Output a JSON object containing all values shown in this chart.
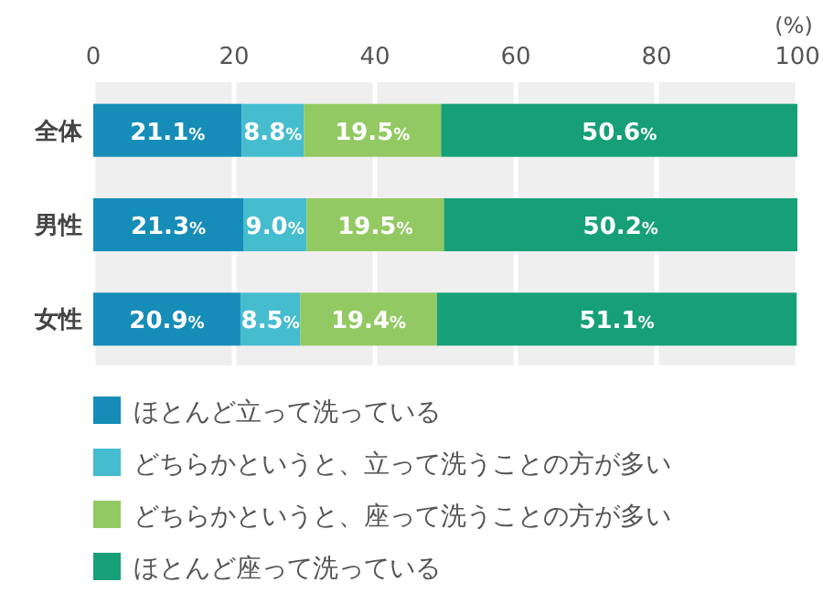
{
  "chart_data": {
    "type": "bar",
    "orientation": "horizontal",
    "stacked": true,
    "xlabel": "(%)",
    "categories": [
      "全体",
      "男性",
      "女性"
    ],
    "series": [
      {
        "name": "ほとんど立って洗っている",
        "color": "#168db8",
        "values": [
          21.1,
          21.3,
          20.9
        ],
        "value_labels": [
          "21.1%",
          "21.3%",
          "20.9%"
        ]
      },
      {
        "name": "どちらかというと、立って洗うことの方が多い",
        "color": "#45bdcf",
        "values": [
          8.8,
          9.0,
          8.5
        ],
        "value_labels": [
          "8.8%",
          "9.0%",
          "8.5%"
        ]
      },
      {
        "name": "どちらかというと、座って洗うことの方が多い",
        "color": "#93c962",
        "values": [
          19.5,
          19.5,
          19.4
        ],
        "value_labels": [
          "19.5%",
          "19.5%",
          "19.4%"
        ]
      },
      {
        "name": "ほとんど座って洗っている",
        "color": "#17a077",
        "values": [
          50.6,
          50.2,
          51.1
        ],
        "value_labels": [
          "50.6%",
          "50.2%",
          "51.1%"
        ]
      }
    ],
    "xlim": [
      0,
      100
    ],
    "xticks": [
      0,
      20,
      40,
      60,
      80,
      100
    ],
    "grid": "x",
    "legend": "bottom"
  }
}
